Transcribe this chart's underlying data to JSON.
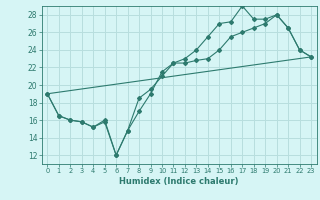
{
  "title": "",
  "xlabel": "Humidex (Indice chaleur)",
  "bg_color": "#d6f5f5",
  "grid_color": "#b8dede",
  "line_color": "#2d7a6e",
  "xlim": [
    -0.5,
    23.5
  ],
  "ylim": [
    11,
    29
  ],
  "xticks": [
    0,
    1,
    2,
    3,
    4,
    5,
    6,
    7,
    8,
    9,
    10,
    11,
    12,
    13,
    14,
    15,
    16,
    17,
    18,
    19,
    20,
    21,
    22,
    23
  ],
  "yticks": [
    12,
    14,
    16,
    18,
    20,
    22,
    24,
    26,
    28
  ],
  "line1_x": [
    0,
    1,
    2,
    3,
    4,
    5,
    6,
    7,
    8,
    9,
    10,
    11,
    12,
    13,
    14,
    15,
    16,
    17,
    18,
    19,
    20,
    21,
    22,
    23
  ],
  "line1_y": [
    19.0,
    16.5,
    16.0,
    15.8,
    15.2,
    16.0,
    12.0,
    14.8,
    18.5,
    19.5,
    21.0,
    22.5,
    23.0,
    24.0,
    25.5,
    27.0,
    27.2,
    29.0,
    27.5,
    27.5,
    28.0,
    26.5,
    24.0,
    23.2
  ],
  "line2_x": [
    0,
    1,
    2,
    3,
    4,
    5,
    6,
    7,
    8,
    9,
    10,
    11,
    12,
    13,
    14,
    15,
    16,
    17,
    18,
    19,
    20,
    21,
    22,
    23
  ],
  "line2_y": [
    19.0,
    16.5,
    16.0,
    15.8,
    15.2,
    15.8,
    12.0,
    14.8,
    17.0,
    19.0,
    21.5,
    22.5,
    22.5,
    22.8,
    23.0,
    24.0,
    25.5,
    26.0,
    26.5,
    27.0,
    28.0,
    26.5,
    24.0,
    23.2
  ],
  "line3_x": [
    0,
    23
  ],
  "line3_y": [
    19.0,
    23.2
  ]
}
